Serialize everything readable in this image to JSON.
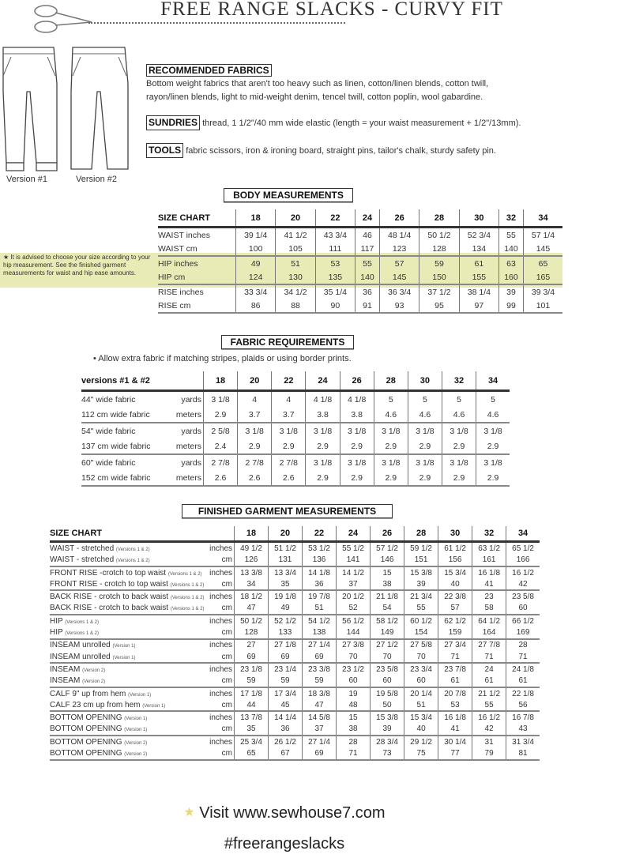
{
  "header": {
    "title": "FREE RANGE SLACKS - CURVY FIT",
    "versions": [
      "Version #1",
      "Version #2"
    ]
  },
  "materials": {
    "fabrics_heading": "RECOMMENDED FABRICS",
    "fabrics_text_1": "Bottom weight fabrics that aren't too heavy such as linen, cotton/linen blends, cotton twill,",
    "fabrics_text_2": "rayon/linen blends, light to mid-weight denim, tencel twill, cotton poplin, wool gabardine.",
    "sundries_heading": "SUNDRIES",
    "sundries_text": "thread, 1 1/2\"/40 mm wide elastic (length = your waist measurement + 1/2\"/13mm).",
    "tools_heading": "TOOLS",
    "tools_text": "fabric scissors, iron & ironing board, straight pins, tailor's chalk, sturdy safety pin."
  },
  "body": {
    "title": "BODY MEASUREMENTS",
    "highlight_color": "#e9ebb6",
    "hip_note": "★ It is advised to choose your size according to your hip measurement. See the finished garment measurements for waist and hip ease amounts.",
    "header": "SIZE CHART",
    "sizes": [
      "18",
      "20",
      "22",
      "24",
      "26",
      "28",
      "30",
      "32",
      "34"
    ],
    "rows": [
      {
        "label": "WAIST inches",
        "values": [
          "39 1/4",
          "41 1/2",
          "43 3/4",
          "46",
          "48 1/4",
          "50 1/2",
          "52 3/4",
          "55",
          "57 1/4"
        ]
      },
      {
        "label": "WAIST cm",
        "values": [
          "100",
          "105",
          "111",
          "117",
          "123",
          "128",
          "134",
          "140",
          "145"
        ]
      },
      {
        "label": "HIP inches",
        "values": [
          "49",
          "51",
          "53",
          "55",
          "57",
          "59",
          "61",
          "63",
          "65"
        ]
      },
      {
        "label": "HIP cm",
        "values": [
          "124",
          "130",
          "135",
          "140",
          "145",
          "150",
          "155",
          "160",
          "165"
        ]
      },
      {
        "label": "RISE inches",
        "values": [
          "33 3/4",
          "34 1/2",
          "35 1/4",
          "36",
          "36 3/4",
          "37 1/2",
          "38 1/4",
          "39",
          "39 3/4"
        ]
      },
      {
        "label": "RISE cm",
        "values": [
          "86",
          "88",
          "90",
          "91",
          "93",
          "95",
          "97",
          "99",
          "101"
        ]
      }
    ]
  },
  "fabric": {
    "title": "FABRIC REQUIREMENTS",
    "note": "• Allow extra fabric if matching stripes, plaids or using border prints.",
    "header": "versions #1 & #2",
    "sizes": [
      "18",
      "20",
      "22",
      "24",
      "26",
      "28",
      "30",
      "32",
      "34"
    ],
    "rows": [
      {
        "label": "44\" wide fabric",
        "unit": "yards",
        "values": [
          "3 1/8",
          "4",
          "4",
          "4 1/8",
          "4 1/8",
          "5",
          "5",
          "5",
          "5"
        ]
      },
      {
        "label": "112 cm wide fabric",
        "unit": "meters",
        "values": [
          "2.9",
          "3.7",
          "3.7",
          "3.8",
          "3.8",
          "4.6",
          "4.6",
          "4.6",
          "4.6"
        ]
      },
      {
        "label": "54\" wide fabric",
        "unit": "yards",
        "values": [
          "2 5/8",
          "3 1/8",
          "3 1/8",
          "3 1/8",
          "3 1/8",
          "3 1/8",
          "3 1/8",
          "3 1/8",
          "3 1/8"
        ]
      },
      {
        "label": "137 cm wide fabric",
        "unit": "meters",
        "values": [
          "2.4",
          "2.9",
          "2.9",
          "2.9",
          "2.9",
          "2.9",
          "2.9",
          "2.9",
          "2.9"
        ]
      },
      {
        "label": "60\" wide fabric",
        "unit": "yards",
        "values": [
          "2 7/8",
          "2 7/8",
          "2 7/8",
          "3 1/8",
          "3 1/8",
          "3 1/8",
          "3 1/8",
          "3 1/8",
          "3 1/8"
        ]
      },
      {
        "label": "152 cm wide fabric",
        "unit": "meters",
        "values": [
          "2.6",
          "2.6",
          "2.6",
          "2.9",
          "2.9",
          "2.9",
          "2.9",
          "2.9",
          "2.9"
        ]
      }
    ]
  },
  "finished": {
    "title": "FINISHED GARMENT MEASUREMENTS",
    "header": "SIZE CHART",
    "sizes": [
      "18",
      "20",
      "22",
      "24",
      "26",
      "28",
      "30",
      "32",
      "34"
    ],
    "rows": [
      {
        "label": "WAIST - stretched",
        "note": "(Versions 1 & 2)",
        "unit": "inches",
        "values": [
          "49 1/2",
          "51 1/2",
          "53 1/2",
          "55 1/2",
          "57 1/2",
          "59 1/2",
          "61 1/2",
          "63 1/2",
          "65 1/2"
        ]
      },
      {
        "label": "WAIST - stretched",
        "note": "(Versions 1 & 2)",
        "unit": "cm",
        "values": [
          "126",
          "131",
          "136",
          "141",
          "146",
          "151",
          "156",
          "161",
          "166"
        ]
      },
      {
        "label": "FRONT RISE -crotch to top waist",
        "note": "(Versions 1 & 2)",
        "unit": "inches",
        "values": [
          "13 3/8",
          "13 3/4",
          "14 1/8",
          "14 1/2",
          "15",
          "15 3/8",
          "15 3/4",
          "16 1/8",
          "16 1/2"
        ]
      },
      {
        "label": "FRONT RISE - crotch to top waist",
        "note": "(Versions 1 & 2)",
        "unit": "cm",
        "values": [
          "34",
          "35",
          "36",
          "37",
          "38",
          "39",
          "40",
          "41",
          "42"
        ]
      },
      {
        "label": "BACK RISE - crotch to back waist",
        "note": "(Versions 1 & 2)",
        "unit": "inches",
        "values": [
          "18 1/2",
          "19 1/8",
          "19 7/8",
          "20 1/2",
          "21 1/8",
          "21 3/4",
          "22 3/8",
          "23",
          "23 5/8"
        ]
      },
      {
        "label": "BACK RISE - crotch to back waist",
        "note": "(Versions 1 & 2)",
        "unit": "cm",
        "values": [
          "47",
          "49",
          "51",
          "52",
          "54",
          "55",
          "57",
          "58",
          "60"
        ]
      },
      {
        "label": "HIP",
        "note": "(Versions 1 & 2)",
        "unit": "inches",
        "values": [
          "50 1/2",
          "52 1/2",
          "54 1/2",
          "56 1/2",
          "58 1/2",
          "60 1/2",
          "62 1/2",
          "64 1/2",
          "66 1/2"
        ]
      },
      {
        "label": "HIP",
        "note": "(Versions 1 & 2)",
        "unit": "cm",
        "values": [
          "128",
          "133",
          "138",
          "144",
          "149",
          "154",
          "159",
          "164",
          "169"
        ]
      },
      {
        "label": "INSEAM unrolled",
        "note": "(Version 1)",
        "unit": "inches",
        "values": [
          "27",
          "27 1/8",
          "27 1/4",
          "27 3/8",
          "27 1/2",
          "27 5/8",
          "27 3/4",
          "27 7/8",
          "28"
        ]
      },
      {
        "label": "INSEAM unrolled",
        "note": "(Version 1)",
        "unit": "cm",
        "values": [
          "69",
          "69",
          "69",
          "70",
          "70",
          "70",
          "71",
          "71",
          "71"
        ]
      },
      {
        "label": "INSEAM",
        "note": "(Version 2)",
        "unit": "inches",
        "values": [
          "23 1/8",
          "23 1/4",
          "23 3/8",
          "23 1/2",
          "23 5/8",
          "23 3/4",
          "23 7/8",
          "24",
          "24 1/8"
        ]
      },
      {
        "label": "INSEAM",
        "note": "(Version 2)",
        "unit": "cm",
        "values": [
          "59",
          "59",
          "59",
          "60",
          "60",
          "60",
          "61",
          "61",
          "61"
        ]
      },
      {
        "label": "CALF 9\" up from hem",
        "note": "(Version 1)",
        "unit": "inches",
        "values": [
          "17 1/8",
          "17 3/4",
          "18 3/8",
          "19",
          "19 5/8",
          "20 1/4",
          "20 7/8",
          "21 1/2",
          "22 1/8"
        ]
      },
      {
        "label": "CALF 23 cm up from hem",
        "note": "(Version 1)",
        "unit": "cm",
        "values": [
          "44",
          "45",
          "47",
          "48",
          "50",
          "51",
          "53",
          "55",
          "56"
        ]
      },
      {
        "label": "BOTTOM OPENING",
        "note": "(Version 1)",
        "unit": "inches",
        "values": [
          "13 7/8",
          "14 1/4",
          "14 5/8",
          "15",
          "15 3/8",
          "15 3/4",
          "16 1/8",
          "16 1/2",
          "16 7/8"
        ]
      },
      {
        "label": "BOTTOM OPENING",
        "note": "(Version 1)",
        "unit": "cm",
        "values": [
          "35",
          "36",
          "37",
          "38",
          "39",
          "40",
          "41",
          "42",
          "43"
        ]
      },
      {
        "label": "BOTTOM OPENING",
        "note": "(Version 2)",
        "unit": "inches",
        "values": [
          "25 3/4",
          "26 1/2",
          "27 1/4",
          "28",
          "28 3/4",
          "29 1/2",
          "30 1/4",
          "31",
          "31 3/4"
        ]
      },
      {
        "label": "BOTTOM OPENING",
        "note": "(Version 2)",
        "unit": "cm",
        "values": [
          "65",
          "67",
          "69",
          "71",
          "73",
          "75",
          "77",
          "79",
          "81"
        ]
      }
    ]
  },
  "footer": {
    "visit": "Visit www.sewhouse7.com",
    "hashtag": "#freerangeslacks",
    "star_color": "#e8d87a"
  }
}
